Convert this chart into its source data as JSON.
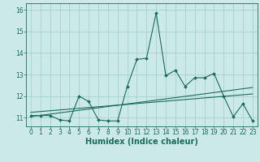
{
  "title": "",
  "xlabel": "Humidex (Indice chaleur)",
  "x_ticks": [
    0,
    1,
    2,
    3,
    4,
    5,
    6,
    7,
    8,
    9,
    10,
    11,
    12,
    13,
    14,
    15,
    16,
    17,
    18,
    19,
    20,
    21,
    22,
    23
  ],
  "y_ticks": [
    11,
    12,
    13,
    14,
    15,
    16
  ],
  "ylim": [
    10.6,
    16.3
  ],
  "xlim": [
    -0.5,
    23.5
  ],
  "bg_color": "#cce9e9",
  "line_color": "#1a6b5a",
  "grid_color": "#a8d0d0",
  "line1_x": [
    0,
    1,
    2,
    3,
    4,
    5,
    6,
    7,
    8,
    9,
    10,
    11,
    12,
    13,
    14,
    15,
    16,
    17,
    18,
    19,
    20,
    21,
    22,
    23
  ],
  "line1_y": [
    11.1,
    11.1,
    11.1,
    10.9,
    10.85,
    12.0,
    11.75,
    10.9,
    10.85,
    10.85,
    12.45,
    13.7,
    13.75,
    15.85,
    12.95,
    13.2,
    12.45,
    12.85,
    12.85,
    13.05,
    12.0,
    11.05,
    11.65,
    10.85
  ],
  "line2_x": [
    0,
    23
  ],
  "line2_y": [
    11.05,
    12.4
  ],
  "line3_x": [
    0,
    23
  ],
  "line3_y": [
    11.25,
    12.1
  ],
  "tick_fontsize": 5.5,
  "label_fontsize": 7
}
